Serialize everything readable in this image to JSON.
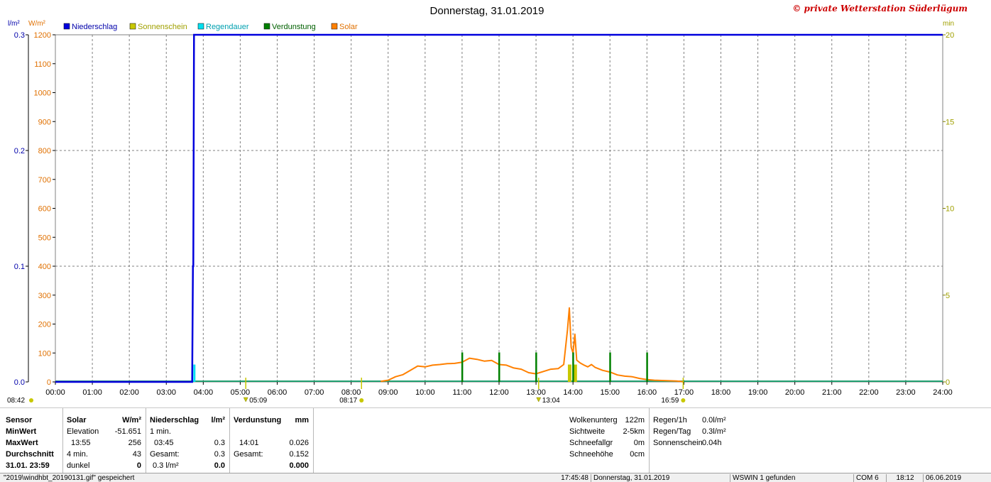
{
  "header": {
    "title": "Donnerstag, 31.01.2019",
    "copyright": "© private Wetterstation Süderlügum"
  },
  "units": {
    "left1": "l/m²",
    "left2": "W/m²",
    "right": "min"
  },
  "legend": [
    {
      "label": "Niederschlag",
      "color": "#0000dd",
      "text_color": "#0000aa"
    },
    {
      "label": "Sonnenschein",
      "color": "#c8c800",
      "text_color": "#a0a000"
    },
    {
      "label": "Regendauer",
      "color": "#00e0f0",
      "text_color": "#00a0b0"
    },
    {
      "label": "Verdunstung",
      "color": "#008000",
      "text_color": "#006000"
    },
    {
      "label": "Solar",
      "color": "#ff8000",
      "text_color": "#e07000"
    }
  ],
  "chart_data": {
    "type": "line",
    "title": "Donnerstag, 31.01.2019",
    "x_ticks": [
      "00:00",
      "01:00",
      "02:00",
      "03:00",
      "04:00",
      "05:00",
      "06:00",
      "07:00",
      "08:00",
      "09:00",
      "10:00",
      "11:00",
      "12:00",
      "13:00",
      "14:00",
      "15:00",
      "16:00",
      "17:00",
      "18:00",
      "19:00",
      "20:00",
      "21:00",
      "22:00",
      "23:00",
      "24:00"
    ],
    "xlim_hours": [
      0,
      24
    ],
    "y_left_precip": {
      "unit": "l/m²",
      "ylim": [
        0,
        0.3
      ],
      "ticks": [
        "0.0",
        "0.1",
        "0.2",
        "0.3"
      ]
    },
    "y_left_solar": {
      "unit": "W/m²",
      "ylim": [
        0,
        1200
      ],
      "ticks": [
        "0",
        "100",
        "200",
        "300",
        "400",
        "500",
        "600",
        "700",
        "800",
        "900",
        "1000",
        "1100",
        "1200"
      ]
    },
    "y_right": {
      "unit": "min",
      "ylim": [
        0,
        20
      ],
      "ticks": [
        "0",
        "5",
        "10",
        "15",
        "20"
      ]
    },
    "grid": true,
    "legend_position": "top-left",
    "series": [
      {
        "name": "Niederschlag",
        "color": "#0000dd",
        "axis": "precip",
        "x": [
          0,
          3.7,
          3.72,
          3.73,
          3.75,
          24
        ],
        "y": [
          0,
          0,
          0.1,
          0.1,
          0.3,
          0.3
        ]
      },
      {
        "name": "Solar",
        "color": "#ff8000",
        "axis": "solar",
        "x": [
          8.8,
          9.0,
          9.2,
          9.4,
          9.6,
          9.8,
          10.0,
          10.2,
          10.4,
          10.6,
          10.8,
          11.0,
          11.2,
          11.4,
          11.6,
          11.8,
          12.0,
          12.2,
          12.4,
          12.6,
          12.8,
          13.0,
          13.2,
          13.4,
          13.6,
          13.75,
          13.85,
          13.9,
          13.95,
          14.0,
          14.05,
          14.1,
          14.2,
          14.3,
          14.4,
          14.5,
          14.6,
          14.8,
          15.0,
          15.2,
          15.4,
          15.6,
          15.8,
          16.0,
          16.2,
          16.4,
          16.6,
          16.8,
          16.9,
          16.98
        ],
        "y": [
          2,
          6,
          18,
          25,
          40,
          55,
          52,
          58,
          60,
          63,
          64,
          68,
          82,
          78,
          72,
          74,
          60,
          58,
          48,
          44,
          32,
          28,
          36,
          44,
          46,
          60,
          180,
          256,
          120,
          100,
          165,
          75,
          65,
          58,
          52,
          60,
          50,
          40,
          34,
          24,
          20,
          18,
          12,
          8,
          6,
          5,
          4,
          3,
          2,
          0
        ]
      },
      {
        "name": "Verdunstung",
        "color": "#008000",
        "axis": "right",
        "x": [
          11.0,
          12.0,
          13.0,
          14.0,
          15.0,
          16.0
        ],
        "y": [
          1.7,
          1.7,
          1.7,
          1.7,
          1.7,
          1.7
        ]
      },
      {
        "name": "Sonnenschein",
        "color": "#c8c800",
        "axis": "right",
        "x": [
          13.9,
          14.05
        ],
        "y": [
          1.0,
          1.0
        ]
      },
      {
        "name": "Regendauer",
        "color": "#00e0f0",
        "axis": "right",
        "x": [
          3.75
        ],
        "y": [
          1.0
        ]
      }
    ],
    "annotations": {
      "sunrise_left": "08:42",
      "under_axis": [
        {
          "label": "05:09",
          "x_hours": 5.15
        },
        {
          "label": "08:17",
          "x_hours": 8.28
        },
        {
          "label": "13:04",
          "x_hours": 13.07
        },
        {
          "label": "16:59",
          "x_hours": 16.98
        }
      ]
    }
  },
  "stats": {
    "sensor": {
      "header": "Sensor",
      "rows": [
        "MinWert",
        "MaxWert",
        "Durchschnitt",
        "31.01. 23:59"
      ]
    },
    "solar": {
      "header": "Solar",
      "unit": "W/m²",
      "rows": [
        {
          "label": "Elevation",
          "value": "-51.651"
        },
        {
          "label": "13:55",
          "value": "256"
        },
        {
          "label": "4 min.",
          "value": "43"
        },
        {
          "label": "dunkel",
          "value": "0"
        }
      ]
    },
    "precip": {
      "header": "Niederschlag",
      "unit": "l/m²",
      "rows": [
        {
          "label": "1 min.",
          "value": ""
        },
        {
          "label": "03:45",
          "value": "0.3"
        },
        {
          "label": "Gesamt:",
          "value": "0.3"
        },
        {
          "label": "0.3 l/m²",
          "value": "0.0"
        }
      ]
    },
    "evap": {
      "header": "Verdunstung",
      "unit": "mm",
      "rows": [
        {
          "label": "",
          "value": ""
        },
        {
          "label": "14:01",
          "value": "0.026"
        },
        {
          "label": "Gesamt:",
          "value": "0.152"
        },
        {
          "label": "",
          "value": "0.000"
        }
      ]
    },
    "weather": [
      {
        "label": "Wolkenunterg",
        "value": "122m"
      },
      {
        "label": "Sichtweite",
        "value": "2-5km"
      },
      {
        "label": "Schneefallgr",
        "value": "0m"
      },
      {
        "label": "Schneehöhe",
        "value": "0cm"
      }
    ],
    "rain": [
      {
        "label": "Regen/1h",
        "value": "0.0l/m²"
      },
      {
        "label": "Regen/Tag",
        "value": "0.3l/m²"
      },
      {
        "label": "Sonnenschein",
        "value": "0.04h"
      }
    ]
  },
  "status_bar": {
    "file": "\"2019\\windhbt_20190131.gif\" gespeichert",
    "time": "17:45:48",
    "date": "Donnerstag, 31.01.2019",
    "device": "WSWIN 1 gefunden",
    "port": "COM 6",
    "clock": "18:12",
    "today": "06.06.2019"
  }
}
